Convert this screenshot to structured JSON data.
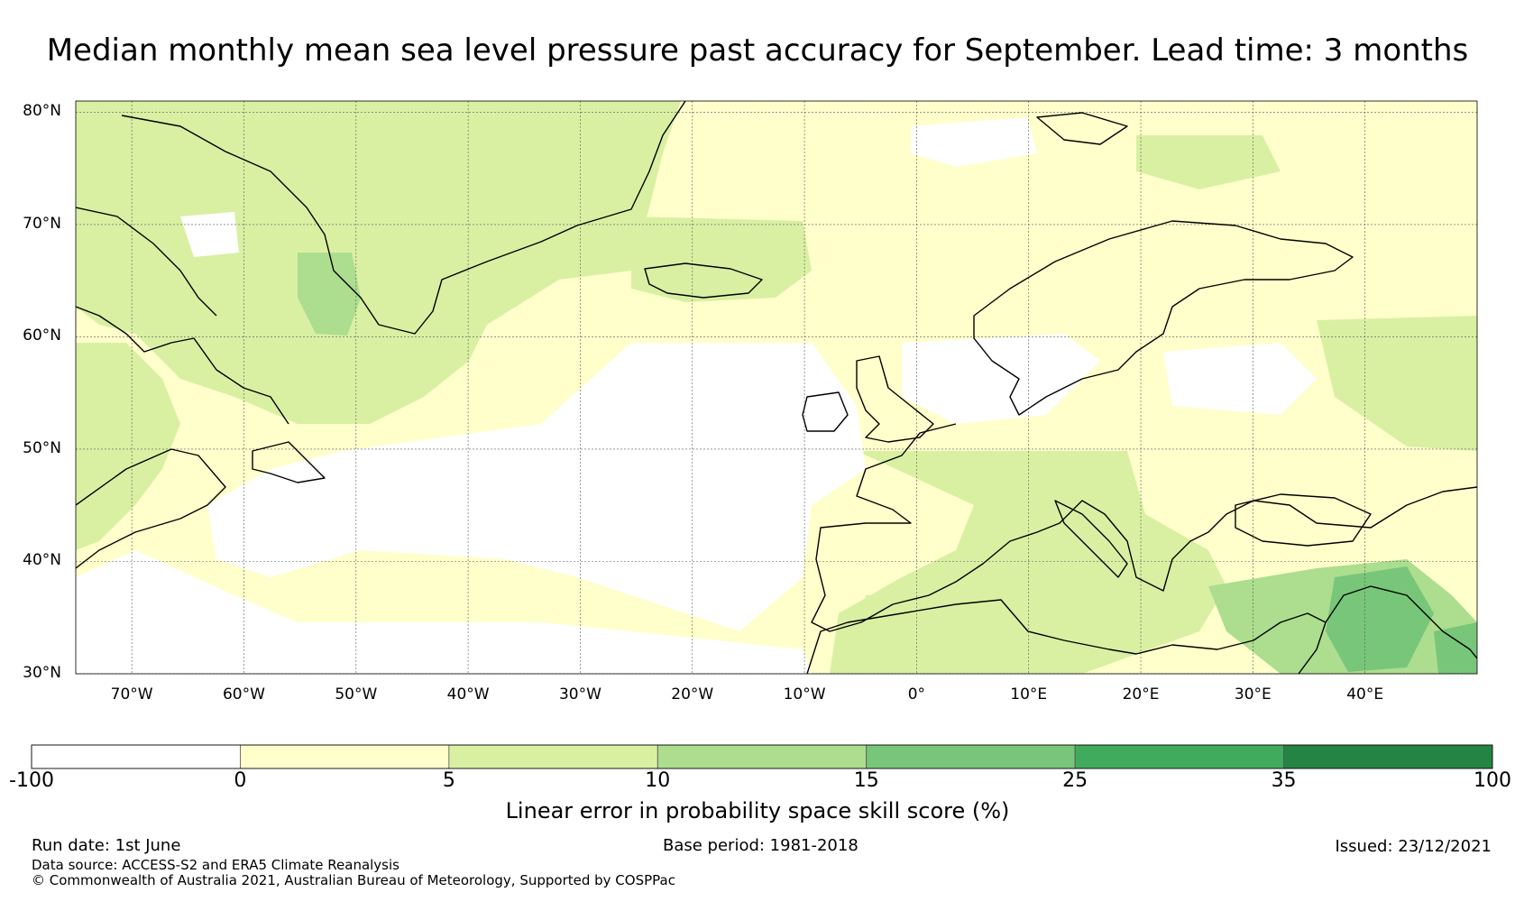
{
  "title": "Median monthly mean sea level pressure past accuracy for September. Lead time: 3 months",
  "map": {
    "lat_labels": [
      "80°N",
      "70°N",
      "60°N",
      "50°N",
      "40°N",
      "30°N"
    ],
    "lon_labels": [
      "70°W",
      "60°W",
      "50°W",
      "40°W",
      "30°W",
      "20°W",
      "10°W",
      "0°",
      "10°E",
      "20°E",
      "30°E",
      "40°E"
    ],
    "lat_values": [
      80,
      70,
      60,
      50,
      40,
      30
    ],
    "lon_values": [
      -70,
      -60,
      -50,
      -40,
      -30,
      -20,
      -10,
      0,
      10,
      20,
      30,
      40
    ],
    "extent": {
      "lon": [
        -75,
        50
      ],
      "lat": [
        30,
        81
      ]
    }
  },
  "colorbar": {
    "title": "Linear error in probability space skill score (%)",
    "ticks": [
      "-100",
      "0",
      "5",
      "10",
      "15",
      "25",
      "35",
      "100"
    ],
    "bins": [
      {
        "from": -100,
        "to": 0,
        "color": "#ffffff"
      },
      {
        "from": 0,
        "to": 5,
        "color": "#ffffcc"
      },
      {
        "from": 5,
        "to": 10,
        "color": "#d9f0a3"
      },
      {
        "from": 10,
        "to": 15,
        "color": "#addd8e"
      },
      {
        "from": 15,
        "to": 25,
        "color": "#78c679"
      },
      {
        "from": 25,
        "to": 35,
        "color": "#41ab5d"
      },
      {
        "from": 35,
        "to": 100,
        "color": "#238443"
      }
    ]
  },
  "footer": {
    "run_date": "Run date: 1st June",
    "base_period": "Base period: 1981-2018",
    "issued": "Issued: 23/12/2021",
    "data_source": "Data source: ACCESS-S2 and ERA5 Climate Reanalysis",
    "copyright": "© Commonwealth of Australia 2021, Australian Bureau of Meteorology, Supported by COSPPac"
  }
}
